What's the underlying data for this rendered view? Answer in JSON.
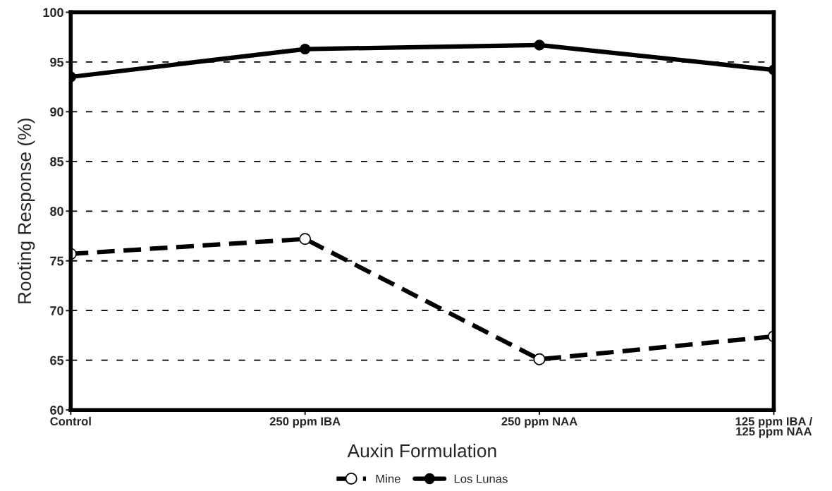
{
  "chart_data": {
    "type": "line",
    "xlabel": "Auxin Formulation",
    "ylabel": "Rooting Response (%)",
    "categories": [
      "Control",
      "250 ppm IBA",
      "250 ppm NAA",
      "125 ppm IBA /\n125 ppm NAA"
    ],
    "series": [
      {
        "name": "Mine",
        "color": "#000000",
        "values": [
          75.7,
          77.2,
          65.1,
          67.4
        ],
        "line_style": "dashed",
        "marker": "circle"
      },
      {
        "name": "Los Lunas",
        "color": "#000000",
        "values": [
          93.5,
          96.3,
          96.7,
          94.2
        ],
        "line_style": "solid",
        "marker": "circle"
      }
    ],
    "ylim": [
      60,
      100
    ],
    "yticks": [
      60,
      65,
      70,
      75,
      80,
      85,
      90,
      95,
      100
    ],
    "grid": "y",
    "legend": "bottom"
  }
}
